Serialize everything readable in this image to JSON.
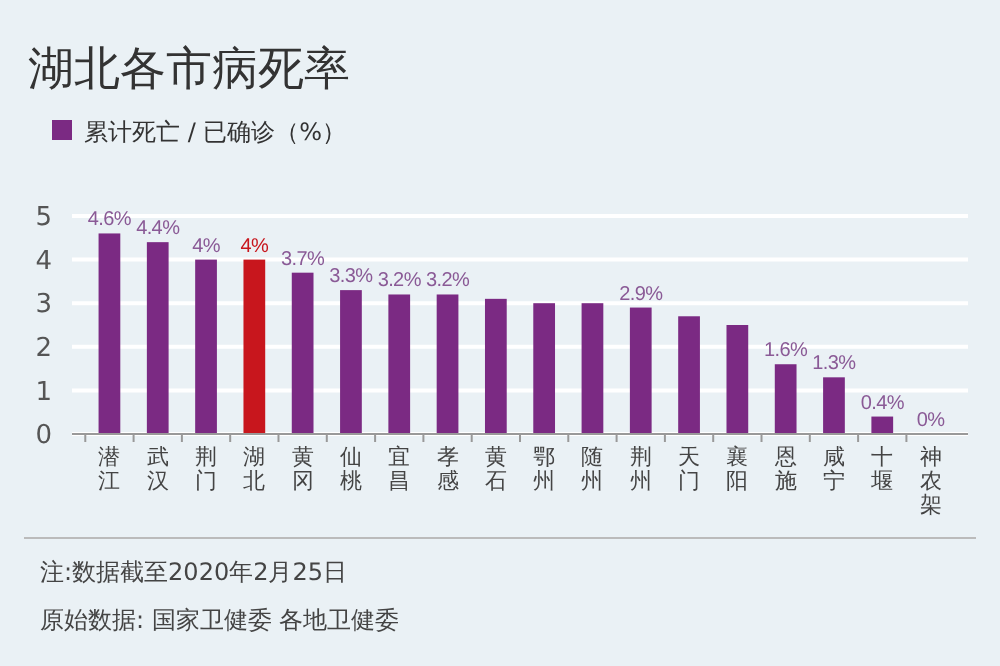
{
  "chart_data": {
    "type": "bar",
    "title": "湖北各市病死率",
    "categories": [
      "潜江",
      "武汉",
      "荆门",
      "湖北",
      "黄冈",
      "仙桃",
      "宜昌",
      "孝感",
      "黄石",
      "鄂州",
      "随州",
      "荆州",
      "天门",
      "襄阳",
      "恩施",
      "咸宁",
      "十堰",
      "神农架"
    ],
    "series": [
      {
        "name": "累计死亡 / 已确诊（%）",
        "color": "#7b2a83",
        "values": [
          4.6,
          4.4,
          4,
          4,
          3.7,
          3.3,
          3.2,
          3.2,
          3.1,
          3.0,
          3.0,
          2.9,
          2.7,
          2.5,
          1.6,
          1.3,
          0.4,
          0
        ],
        "value_labels": [
          "4.6%",
          "4.4%",
          "4%",
          "4%",
          "3.7%",
          "3.3%",
          "3.2%",
          "3.2%",
          null,
          null,
          null,
          "2.9%",
          null,
          null,
          "1.6%",
          "1.3%",
          "0.4%",
          "0%"
        ],
        "colors": [
          "#7b2a83",
          "#7b2a83",
          "#7b2a83",
          "#c8161d",
          "#7b2a83",
          "#7b2a83",
          "#7b2a83",
          "#7b2a83",
          "#7b2a83",
          "#7b2a83",
          "#7b2a83",
          "#7b2a83",
          "#7b2a83",
          "#7b2a83",
          "#7b2a83",
          "#7b2a83",
          "#7b2a83",
          "#7b2a83"
        ]
      }
    ],
    "ylim": [
      0,
      5
    ],
    "yticks": [
      0,
      1,
      2,
      3,
      4,
      5
    ],
    "grid": "y",
    "legend": "top left",
    "annotations": [
      "注:数据截至2020年2月25日",
      "原始数据: 国家卫健委 各地卫健委"
    ]
  }
}
